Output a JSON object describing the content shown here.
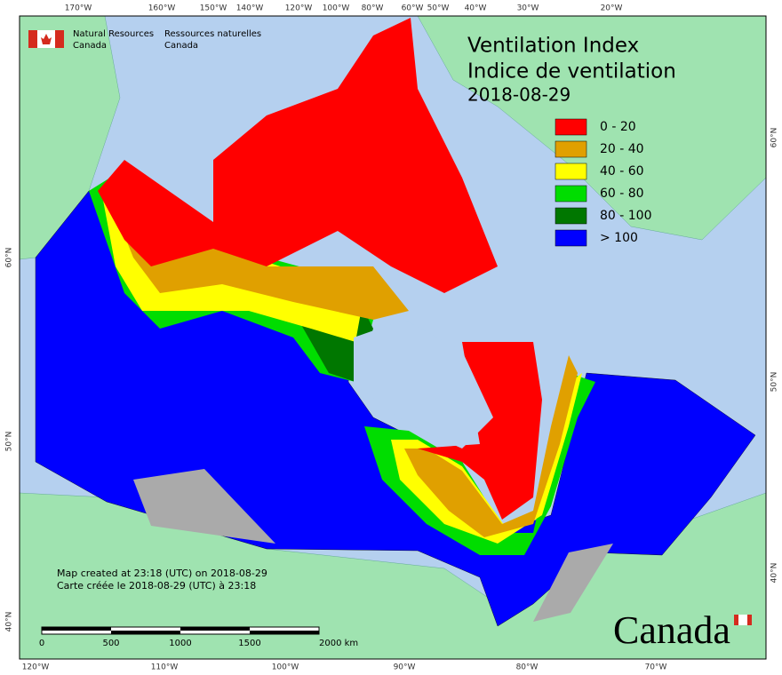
{
  "header": {
    "agency_en": "Natural Resources",
    "agency_en_line2": "Canada",
    "agency_fr": "Ressources naturelles",
    "agency_fr_line2": "Canada"
  },
  "title": {
    "en": "Ventilation Index",
    "fr": "Indice de ventilation",
    "date": "2018-08-29"
  },
  "legend": [
    {
      "label": "0 - 20",
      "color": "#ff0000"
    },
    {
      "label": "20 - 40",
      "color": "#e0a000"
    },
    {
      "label": "40 - 60",
      "color": "#ffff00"
    },
    {
      "label": "60 - 80",
      "color": "#00dd00"
    },
    {
      "label": "80 - 100",
      "color": "#007700"
    },
    {
      "label": "> 100",
      "color": "#0000ff"
    }
  ],
  "credits": [
    "Map created at 23:18 (UTC) on 2018-08-29",
    "Carte créée le 2018-08-29 (UTC) à 23:18"
  ],
  "scale_bar": {
    "labels": [
      "0",
      "500",
      "1000",
      "1500",
      "2000 km"
    ]
  },
  "graticule": {
    "top": [
      "170°W",
      "160°W",
      "150°W",
      "140°W",
      "120°W",
      "100°W",
      "80°W",
      "60°W",
      "50°W",
      "40°W",
      "30°W",
      "20°W"
    ],
    "bottom": [
      "120°W",
      "110°W",
      "100°W",
      "90°W",
      "80°W",
      "70°W"
    ],
    "left": [
      "60°N",
      "50°N",
      "40°N"
    ],
    "right": [
      "60°N",
      "50°N",
      "40°N"
    ]
  },
  "wordmark": "Canada"
}
